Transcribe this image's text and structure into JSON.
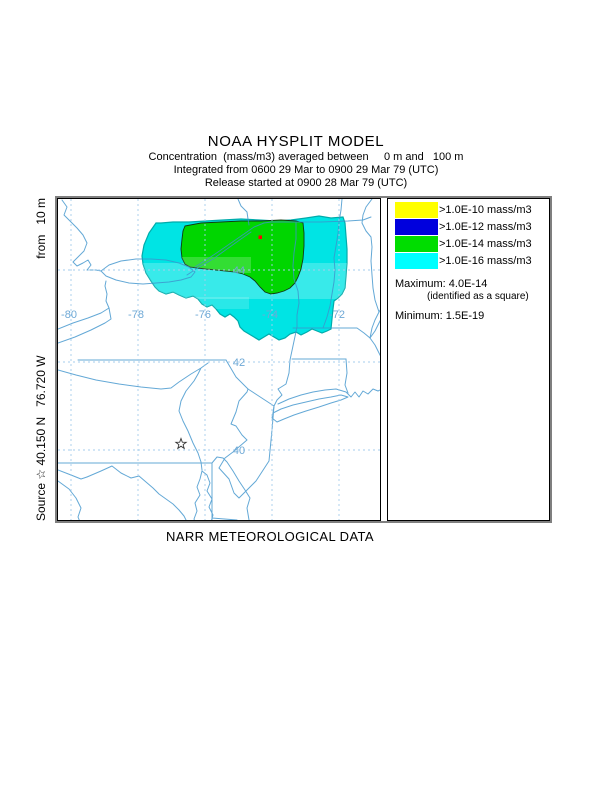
{
  "header": {
    "title": "NOAA HYSPLIT MODEL",
    "subtitle1": "Concentration  (mass/m3) averaged between     0 m and   100 m",
    "subtitle2": "Integrated from 0600 29 Mar to 0900 29 Mar 79 (UTC)",
    "subtitle3": "Release started at 0900 28 Mar 79 (UTC)"
  },
  "side_label": {
    "source_text": "Source",
    "star": "☆",
    "coordinates": " 40.150 N   76.720 W",
    "release_height": "from   10 m"
  },
  "map": {
    "lon_labels": [
      "-80",
      "-78",
      "-76",
      "-74",
      "-72"
    ],
    "lat_labels": [
      "44",
      "42",
      "40"
    ],
    "max_marker_note": "maximum identified as red square",
    "source_marker_note": "source star at 40.150 N 76.720 W"
  },
  "legend": {
    "items": [
      {
        "color": "#FFFF00",
        "label": ">1.0E-10 mass/m3"
      },
      {
        "color": "#0000DD",
        "label": ">1.0E-12 mass/m3"
      },
      {
        "color": "#00DD00",
        "label": ">1.0E-14 mass/m3"
      },
      {
        "color": "#00FFFF",
        "label": ">1.0E-16 mass/m3"
      }
    ],
    "maximum_label": "Maximum: 4.0E-14",
    "maximum_note": "(identified as a square)",
    "minimum_label": "Minimum: 1.5E-19"
  },
  "footer": {
    "caption": "NARR METEOROLOGICAL DATA"
  },
  "colors": {
    "contour_cyan": "#00E4E4",
    "contour_cyan_edge": "#00ABAB",
    "contour_green": "#00D600",
    "contour_green_edge": "#123A12",
    "map_line": "#3D93CC",
    "grid_line": "#A6CEEC",
    "grid_label": "#6FA9D6",
    "max_marker": "#FF0000",
    "frame_gray": "#7F7F7F"
  }
}
